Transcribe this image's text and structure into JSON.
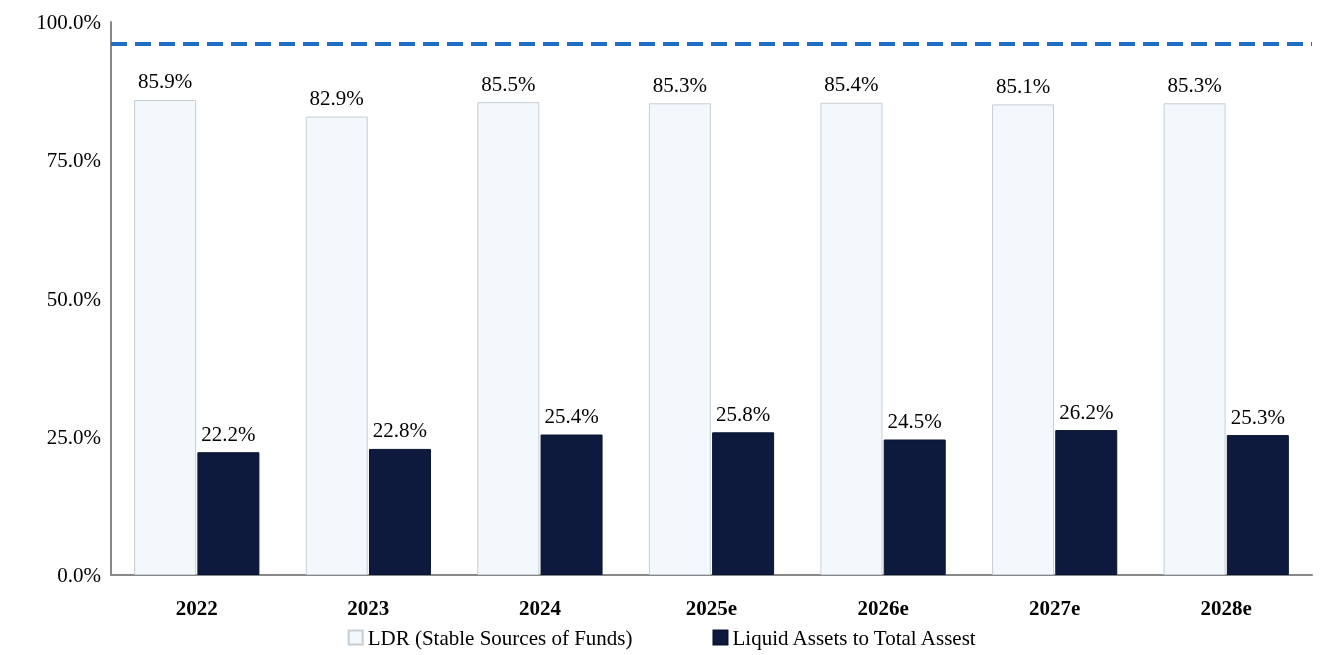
{
  "chart_data": {
    "type": "bar",
    "categories": [
      "2022",
      "2023",
      "2024",
      "2025e",
      "2026e",
      "2027e",
      "2028e"
    ],
    "series": [
      {
        "name": "LDR (Stable Sources of Funds)",
        "color": "#f2f8fc",
        "values": [
          85.9,
          82.9,
          85.5,
          85.3,
          85.4,
          85.1,
          85.3
        ]
      },
      {
        "name": "Liquid Assets to Total Assest",
        "color": "#0d1a3d",
        "values": [
          22.2,
          22.8,
          25.4,
          25.8,
          24.5,
          26.2,
          25.3
        ]
      }
    ],
    "ylim": [
      0,
      100
    ],
    "yticks": [
      {
        "value": 0,
        "label": "0.0%"
      },
      {
        "value": 25,
        "label": "25.0%"
      },
      {
        "value": 50,
        "label": "50.0%"
      },
      {
        "value": 75,
        "label": "75.0%"
      },
      {
        "value": 100,
        "label": "100.0%"
      }
    ],
    "value_labels": [
      [
        "85.9%",
        "82.9%",
        "85.5%",
        "85.3%",
        "85.4%",
        "85.1%",
        "85.3%"
      ],
      [
        "22.2%",
        "22.8%",
        "25.4%",
        "25.8%",
        "24.5%",
        "26.2%",
        "25.3%"
      ]
    ],
    "ref_lines": [
      {
        "axis": "y",
        "value": 96,
        "color": "#1f6fc5",
        "line_style": "dashed"
      }
    ],
    "grid": false,
    "legend": "bottom"
  }
}
